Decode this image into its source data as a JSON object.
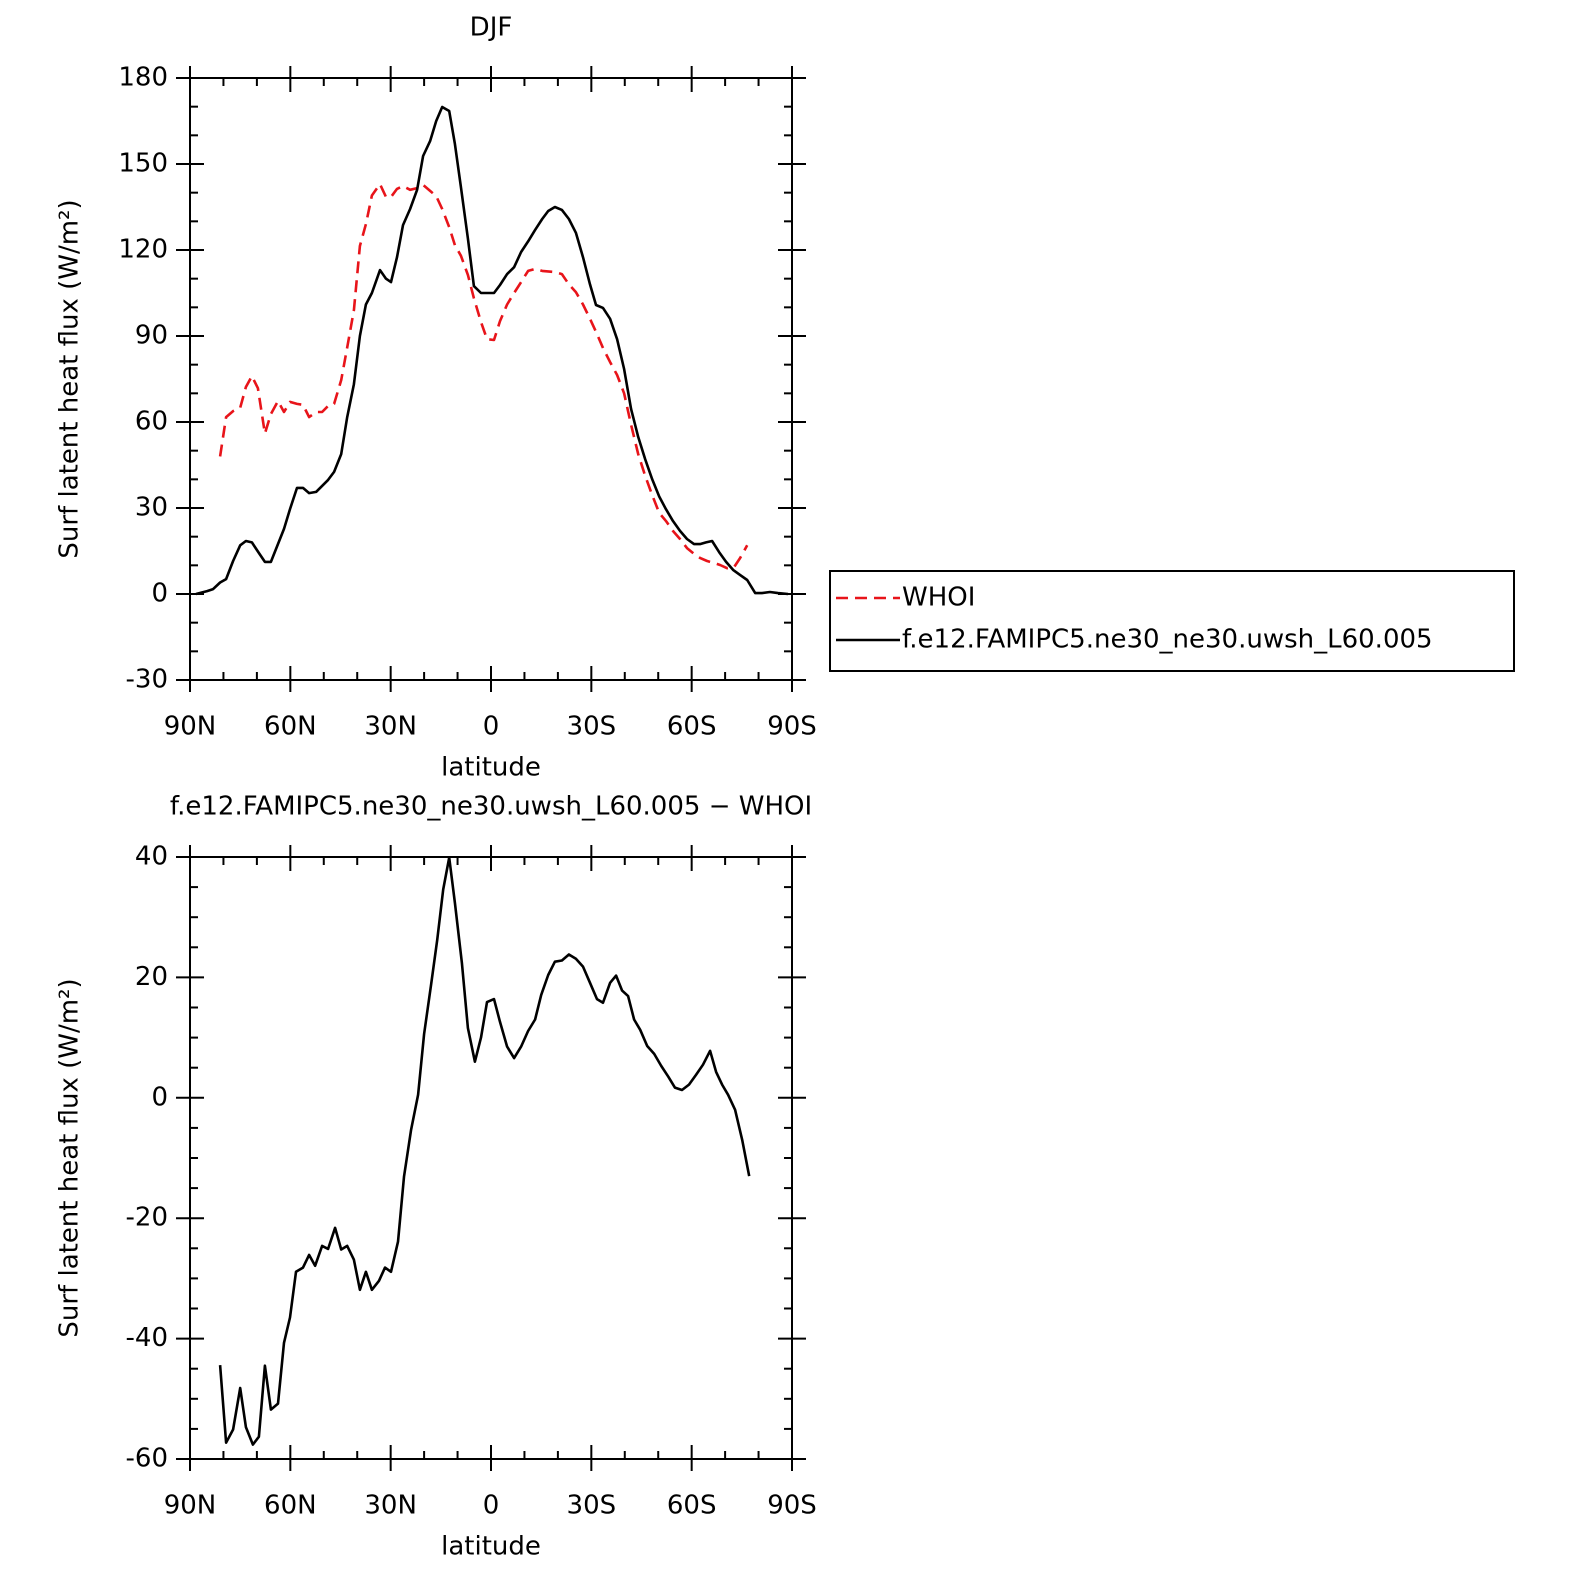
{
  "chart_data": [
    {
      "type": "line",
      "title": "DJF",
      "xlabel": "latitude",
      "ylabel": "Surf latent heat flux (W/m²)",
      "xlim": [
        90,
        -90
      ],
      "xticks": [
        {
          "value": 90,
          "label": "90N"
        },
        {
          "value": 60,
          "label": "60N"
        },
        {
          "value": 30,
          "label": "30N"
        },
        0,
        {
          "value": -30,
          "label": "30S"
        },
        {
          "value": -60,
          "label": "60S"
        },
        {
          "value": -90,
          "label": "90S"
        }
      ],
      "xminorticks": [
        80,
        70,
        50,
        40,
        20,
        10,
        -10,
        -20,
        -40,
        -50,
        -70,
        -80
      ],
      "ylim": [
        -30,
        180
      ],
      "yticks": [
        -30,
        0,
        30,
        60,
        90,
        120,
        150,
        180
      ],
      "yminorticks": [
        -20,
        -10,
        10,
        20,
        40,
        50,
        70,
        80,
        100,
        110,
        130,
        140,
        160,
        170
      ],
      "legend": "right",
      "series": [
        {
          "name": "WHOI",
          "color": "#e8141a",
          "dashed": true,
          "x": [
            81,
            79.2,
            77.1,
            75,
            73.3,
            71.5,
            69.7,
            67.6,
            65.8,
            63.7,
            61.9,
            60.1,
            58,
            56.2,
            54.4,
            52.3,
            50.5,
            48.7,
            46.9,
            44.8,
            43,
            41,
            39.2,
            37.4,
            35.6,
            33.2,
            31.4,
            29.9,
            28.1,
            26.3,
            24.2,
            22.1,
            20.3,
            18.2,
            16.4,
            14.6,
            12.5,
            10.8,
            9,
            6.9,
            5.1,
            3,
            1.2,
            -0.9,
            -2.7,
            -4.8,
            -6.9,
            -9,
            -11.1,
            -13.2,
            -15.3,
            -19.1,
            -21.2,
            -23.3,
            -25.4,
            -27.5,
            -29.6,
            -31.7,
            -33.5,
            -35.6,
            -37.7,
            -39.8,
            -41.9,
            -44,
            -46.1,
            -48.2,
            -50.3,
            -52.3,
            -54.4,
            -56.5,
            -58.6,
            -60.7,
            -62.5,
            -64.6,
            -66.7,
            -68.5,
            -70.6,
            -72.7,
            -74.5,
            -76.6
          ],
          "values": [
            48,
            61.7,
            63.8,
            65,
            72.2,
            76,
            71.8,
            56,
            62.8,
            67.3,
            63.5,
            67,
            66.3,
            66,
            61.7,
            63.5,
            63.5,
            65.6,
            66.3,
            74.6,
            86,
            99,
            121.4,
            129,
            139,
            143,
            138.5,
            138.5,
            141.3,
            142.3,
            141,
            141.6,
            142.7,
            140.6,
            138.8,
            134.3,
            128,
            121.7,
            118,
            111.3,
            103.2,
            94.9,
            88.9,
            88.6,
            95.2,
            101,
            105,
            108.8,
            112.7,
            113.4,
            112.7,
            112.3,
            111.6,
            108,
            105.3,
            101,
            96,
            90.7,
            85.8,
            80.9,
            76.4,
            70,
            59,
            48.8,
            41.2,
            34.5,
            28.3,
            25.5,
            22,
            19.2,
            16,
            14,
            12.6,
            11.5,
            10.8,
            10.1,
            9,
            9.4,
            12.6,
            17
          ]
        },
        {
          "name": "f.e12.FAMIPC5.ne30_ne30.uwsh_L60.005",
          "color": "#000000",
          "dashed": false,
          "x": [
            88.2,
            84.9,
            83.1,
            81,
            79.2,
            77.1,
            75,
            73.3,
            71.5,
            69.4,
            67.6,
            65.8,
            61.9,
            60.1,
            58,
            56.2,
            54.4,
            52.3,
            48.7,
            46.9,
            44.8,
            43,
            41,
            39.2,
            37.4,
            35.6,
            33.2,
            31.4,
            29.9,
            28.1,
            26.3,
            24.2,
            22.1,
            20.3,
            18.2,
            16.4,
            14.6,
            12.5,
            10.8,
            9,
            6.9,
            5.1,
            3,
            -0.9,
            -2.7,
            -4.8,
            -6.9,
            -9,
            -11.1,
            -13.2,
            -15.3,
            -17.1,
            -19.1,
            -21.2,
            -23.3,
            -25.4,
            -27.5,
            -29.6,
            -31.4,
            -33.5,
            -35.6,
            -37.7,
            -39.8,
            -41.9,
            -44,
            -46.1,
            -48.2,
            -50.3,
            -52.3,
            -54.4,
            -56.5,
            -58.6,
            -60.7,
            -62.5,
            -64.3,
            -66.1,
            -68.2,
            -70.3,
            -72.4,
            -74.5,
            -76.6,
            -79,
            -81,
            -83.4,
            -85.8,
            -88.8
          ],
          "values": [
            0,
            1,
            1.7,
            4,
            5.2,
            11.5,
            17,
            18.5,
            18,
            14.3,
            11.2,
            11.2,
            22.7,
            29.6,
            37,
            37,
            35.2,
            35.6,
            39.8,
            42.6,
            48.8,
            61.7,
            73.2,
            90,
            101,
            105,
            113,
            110,
            108.8,
            117.5,
            128.7,
            134.3,
            141,
            152.8,
            158,
            165,
            169.9,
            168.5,
            157,
            142,
            124,
            107.4,
            105,
            105,
            107.8,
            111.6,
            114,
            119.3,
            123,
            127,
            130.8,
            133.6,
            135,
            134,
            130.8,
            126,
            117.5,
            108,
            100.8,
            99.8,
            96,
            88.9,
            78.5,
            64.5,
            54.8,
            47,
            40,
            34,
            29.6,
            25.5,
            22,
            19.2,
            17.4,
            17.4,
            18,
            18.5,
            14.6,
            11.2,
            8.4,
            6.6,
            4.9,
            0.3,
            0.3,
            0.7,
            0.3,
            0
          ]
        }
      ]
    },
    {
      "type": "line",
      "title": "f.e12.FAMIPC5.ne30_ne30.uwsh_L60.005 − WHOI",
      "xlabel": "latitude",
      "ylabel": "Surf latent heat flux (W/m²)",
      "xlim": [
        90,
        -90
      ],
      "xticks": [
        {
          "value": 90,
          "label": "90N"
        },
        {
          "value": 60,
          "label": "60N"
        },
        {
          "value": 30,
          "label": "30N"
        },
        0,
        {
          "value": -30,
          "label": "30S"
        },
        {
          "value": -60,
          "label": "60S"
        },
        {
          "value": -90,
          "label": "90S"
        }
      ],
      "xminorticks": [
        80,
        70,
        50,
        40,
        20,
        10,
        -10,
        -20,
        -40,
        -50,
        -70,
        -80
      ],
      "ylim": [
        -60,
        40
      ],
      "yticks": [
        -60,
        -40,
        -20,
        0,
        20,
        40
      ],
      "yminorticks": [
        -55,
        -50,
        -45,
        -35,
        -30,
        -25,
        -15,
        -10,
        -5,
        5,
        10,
        15,
        25,
        30,
        35
      ],
      "color": "#000000",
      "x": [
        81,
        79.2,
        77.1,
        75,
        73.3,
        71.2,
        69.4,
        67.6,
        65.8,
        63.7,
        61.9,
        60.1,
        58.3,
        56.2,
        54.4,
        52.6,
        50.5,
        48.7,
        46.6,
        44.8,
        43,
        41,
        39.2,
        37.4,
        35.6,
        33.5,
        31.7,
        29.9,
        27.8,
        26,
        23.9,
        21.8,
        20,
        17.9,
        16.1,
        14.3,
        12.5,
        10.8,
        8.7,
        6.9,
        4.8,
        3,
        1.2,
        -0.9,
        -2.7,
        -4.8,
        -6.9,
        -9,
        -11.1,
        -13.2,
        -15,
        -17.1,
        -19.1,
        -21.2,
        -23.3,
        -25.4,
        -27.5,
        -29.6,
        -31.7,
        -33.5,
        -35.6,
        -37.4,
        -39.2,
        -41,
        -42.8,
        -44.6,
        -46.7,
        -48.8,
        -50.9,
        -53,
        -55,
        -57.1,
        -59.2,
        -61.3,
        -63.4,
        -65.5,
        -67.3,
        -69.1,
        -70.9,
        -73,
        -75.1,
        -77.2
      ],
      "values": [
        -44.4,
        -57.3,
        -55.1,
        -48.2,
        -54.7,
        -57.6,
        -56.3,
        -44.5,
        -51.8,
        -50.8,
        -40.7,
        -36.5,
        -28.9,
        -28.2,
        -26.1,
        -27.9,
        -24.6,
        -25.1,
        -21.6,
        -25.2,
        -24.6,
        -26.9,
        -31.9,
        -28.9,
        -31.9,
        -30.4,
        -28.2,
        -28.9,
        -23.9,
        -13.1,
        -5.3,
        0.5,
        10.6,
        18.8,
        26.2,
        34.6,
        39.9,
        32.4,
        22.4,
        11.6,
        6,
        10,
        15.9,
        16.4,
        12.6,
        8.5,
        6.6,
        8.5,
        11.1,
        13,
        17.1,
        20.4,
        22.6,
        22.8,
        23.8,
        23.1,
        21.8,
        19.1,
        16.4,
        15.8,
        19.1,
        20.3,
        17.8,
        16.9,
        13,
        11.3,
        8.6,
        7.3,
        5.3,
        3.5,
        1.7,
        1.3,
        2.2,
        3.8,
        5.5,
        7.8,
        4.3,
        2.2,
        0.5,
        -2,
        -7,
        -13
      ]
    }
  ]
}
